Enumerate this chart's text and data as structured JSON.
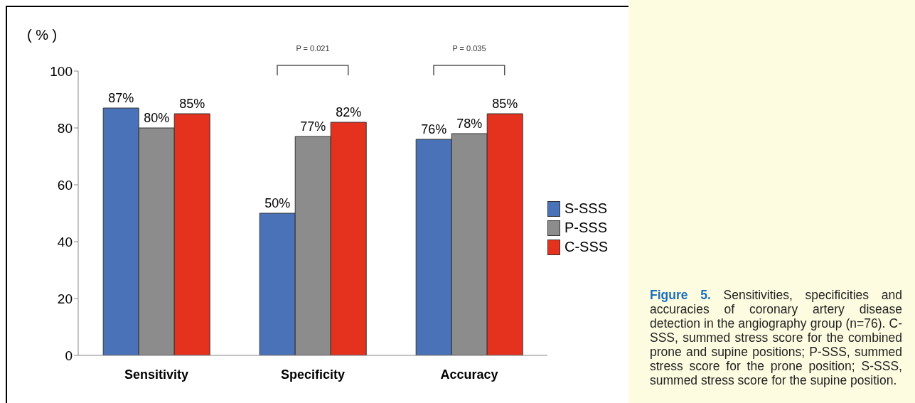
{
  "chart_data": {
    "type": "bar",
    "ylabel": "( % )",
    "categories": [
      "Sensitivity",
      "Specificity",
      "Accuracy"
    ],
    "series": [
      {
        "name": "S-SSS",
        "color": "#4a72b8",
        "values": [
          87,
          50,
          76
        ],
        "value_labels": [
          "87%",
          "50%",
          "76%"
        ]
      },
      {
        "name": "P-SSS",
        "color": "#8c8c8c",
        "values": [
          80,
          77,
          78
        ],
        "value_labels": [
          "80%",
          "77%",
          "78%"
        ]
      },
      {
        "name": "C-SSS",
        "color": "#e4321e",
        "values": [
          85,
          82,
          85
        ],
        "value_labels": [
          "85%",
          "82%",
          "85%"
        ]
      }
    ],
    "ylim": [
      0,
      100
    ],
    "yticks": [
      0,
      20,
      40,
      60,
      80,
      100
    ],
    "grid": false,
    "legend": "right",
    "annotations": [
      "P = 0.021",
      "P = 0.035",
      "Figure 5. Sensitivities, specificities and accuracies of coronary artery disease detection in the angiography group (n=76). C-SSS, summed stress score for the combined prone and supine positions; P-SSS, summed stress score for the prone position; S-SSS, summed stress score for the supine position."
    ]
  }
}
